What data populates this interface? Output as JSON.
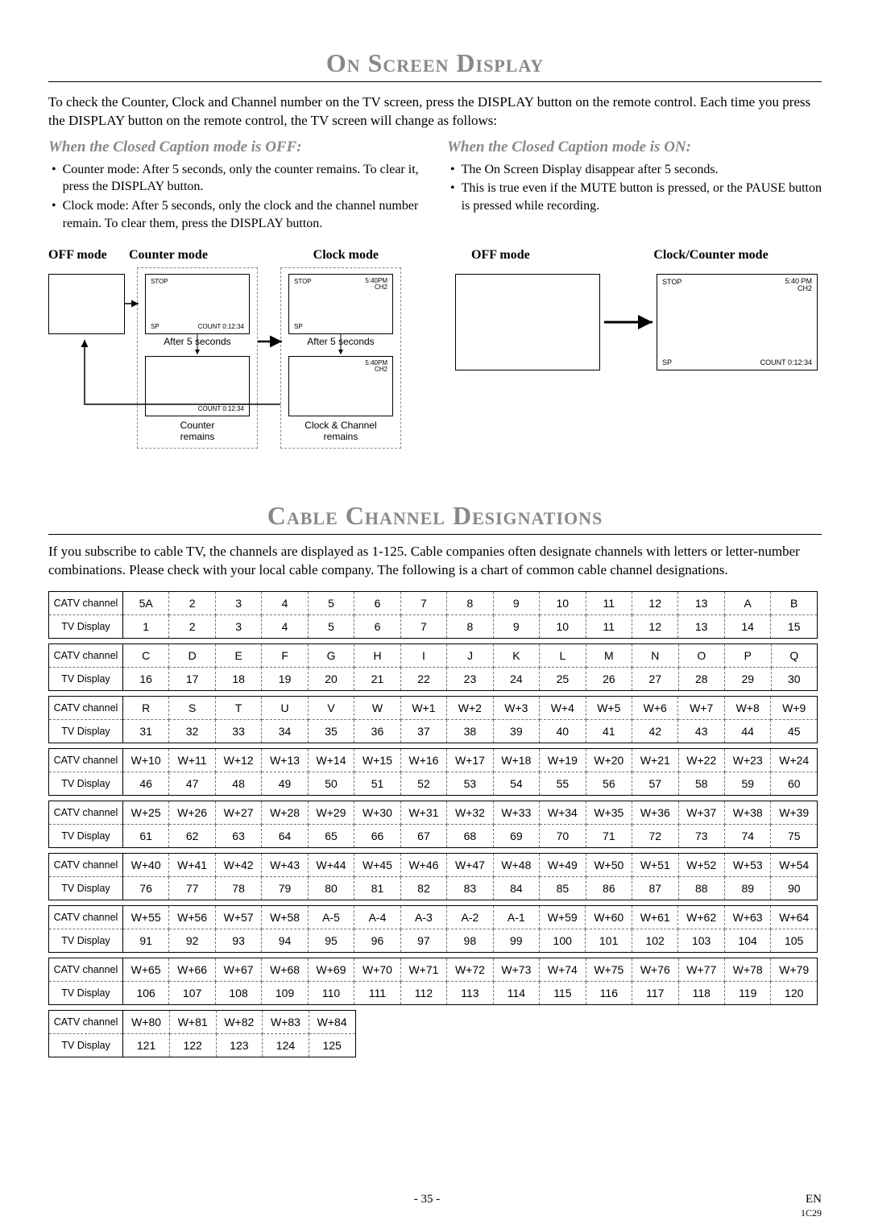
{
  "title1": "On Screen Display",
  "intro": "To check the Counter, Clock and Channel number on the TV screen, press the DISPLAY button on the remote control. Each time you press the DISPLAY button on the remote control, the TV screen will change as follows:",
  "left": {
    "head": "When the Closed Caption mode is OFF:",
    "b1": "Counter mode: After 5 seconds, only the counter remains. To clear it, press the DISPLAY button.",
    "b2": "Clock mode: After 5 seconds, only the clock and the channel number remain. To clear them, press the DISPLAY button."
  },
  "right": {
    "head": "When the Closed Caption mode is ON:",
    "b1": "The On Screen Display disappear after 5 seconds.",
    "b2": "This is true even if the MUTE button is pressed, or the PAUSE button is pressed while recording."
  },
  "labels": {
    "off": "OFF mode",
    "counter": "Counter mode",
    "clock": "Clock mode",
    "clockcounter": "Clock/Counter mode",
    "after5": "After 5 seconds",
    "counterRemains": "Counter\nremains",
    "clockRemains": "Clock & Channel\nremains"
  },
  "osd": {
    "stop": "STOP",
    "sp": "SP",
    "count": "COUNT  0:12:34",
    "time": "5:40PM",
    "time2": "5:40 PM",
    "ch": "CH2"
  },
  "title2": "Cable Channel Designations",
  "intro2": "If you subscribe to cable TV, the channels are displayed as 1-125. Cable companies often designate channels with letters or letter-number combinations. Please check with your local cable company. The following is a chart of common cable channel designations.",
  "rowLabels": {
    "catv": "CATV channel",
    "tv": "TV Display"
  },
  "groups": [
    {
      "catv": [
        "5A",
        "2",
        "3",
        "4",
        "5",
        "6",
        "7",
        "8",
        "9",
        "10",
        "11",
        "12",
        "13",
        "A",
        "B"
      ],
      "tv": [
        "1",
        "2",
        "3",
        "4",
        "5",
        "6",
        "7",
        "8",
        "9",
        "10",
        "11",
        "12",
        "13",
        "14",
        "15"
      ]
    },
    {
      "catv": [
        "C",
        "D",
        "E",
        "F",
        "G",
        "H",
        "I",
        "J",
        "K",
        "L",
        "M",
        "N",
        "O",
        "P",
        "Q"
      ],
      "tv": [
        "16",
        "17",
        "18",
        "19",
        "20",
        "21",
        "22",
        "23",
        "24",
        "25",
        "26",
        "27",
        "28",
        "29",
        "30"
      ]
    },
    {
      "catv": [
        "R",
        "S",
        "T",
        "U",
        "V",
        "W",
        "W+1",
        "W+2",
        "W+3",
        "W+4",
        "W+5",
        "W+6",
        "W+7",
        "W+8",
        "W+9"
      ],
      "tv": [
        "31",
        "32",
        "33",
        "34",
        "35",
        "36",
        "37",
        "38",
        "39",
        "40",
        "41",
        "42",
        "43",
        "44",
        "45"
      ]
    },
    {
      "catv": [
        "W+10",
        "W+11",
        "W+12",
        "W+13",
        "W+14",
        "W+15",
        "W+16",
        "W+17",
        "W+18",
        "W+19",
        "W+20",
        "W+21",
        "W+22",
        "W+23",
        "W+24"
      ],
      "tv": [
        "46",
        "47",
        "48",
        "49",
        "50",
        "51",
        "52",
        "53",
        "54",
        "55",
        "56",
        "57",
        "58",
        "59",
        "60"
      ]
    },
    {
      "catv": [
        "W+25",
        "W+26",
        "W+27",
        "W+28",
        "W+29",
        "W+30",
        "W+31",
        "W+32",
        "W+33",
        "W+34",
        "W+35",
        "W+36",
        "W+37",
        "W+38",
        "W+39"
      ],
      "tv": [
        "61",
        "62",
        "63",
        "64",
        "65",
        "66",
        "67",
        "68",
        "69",
        "70",
        "71",
        "72",
        "73",
        "74",
        "75"
      ]
    },
    {
      "catv": [
        "W+40",
        "W+41",
        "W+42",
        "W+43",
        "W+44",
        "W+45",
        "W+46",
        "W+47",
        "W+48",
        "W+49",
        "W+50",
        "W+51",
        "W+52",
        "W+53",
        "W+54"
      ],
      "tv": [
        "76",
        "77",
        "78",
        "79",
        "80",
        "81",
        "82",
        "83",
        "84",
        "85",
        "86",
        "87",
        "88",
        "89",
        "90"
      ]
    },
    {
      "catv": [
        "W+55",
        "W+56",
        "W+57",
        "W+58",
        "A-5",
        "A-4",
        "A-3",
        "A-2",
        "A-1",
        "W+59",
        "W+60",
        "W+61",
        "W+62",
        "W+63",
        "W+64"
      ],
      "tv": [
        "91",
        "92",
        "93",
        "94",
        "95",
        "96",
        "97",
        "98",
        "99",
        "100",
        "101",
        "102",
        "103",
        "104",
        "105"
      ]
    },
    {
      "catv": [
        "W+65",
        "W+66",
        "W+67",
        "W+68",
        "W+69",
        "W+70",
        "W+71",
        "W+72",
        "W+73",
        "W+74",
        "W+75",
        "W+76",
        "W+77",
        "W+78",
        "W+79"
      ],
      "tv": [
        "106",
        "107",
        "108",
        "109",
        "110",
        "111",
        "112",
        "113",
        "114",
        "115",
        "116",
        "117",
        "118",
        "119",
        "120"
      ]
    },
    {
      "catv": [
        "W+80",
        "W+81",
        "W+82",
        "W+83",
        "W+84"
      ],
      "tv": [
        "121",
        "122",
        "123",
        "124",
        "125"
      ]
    }
  ],
  "footer": {
    "page": "- 35 -",
    "lang": "EN",
    "code": "1C29"
  }
}
